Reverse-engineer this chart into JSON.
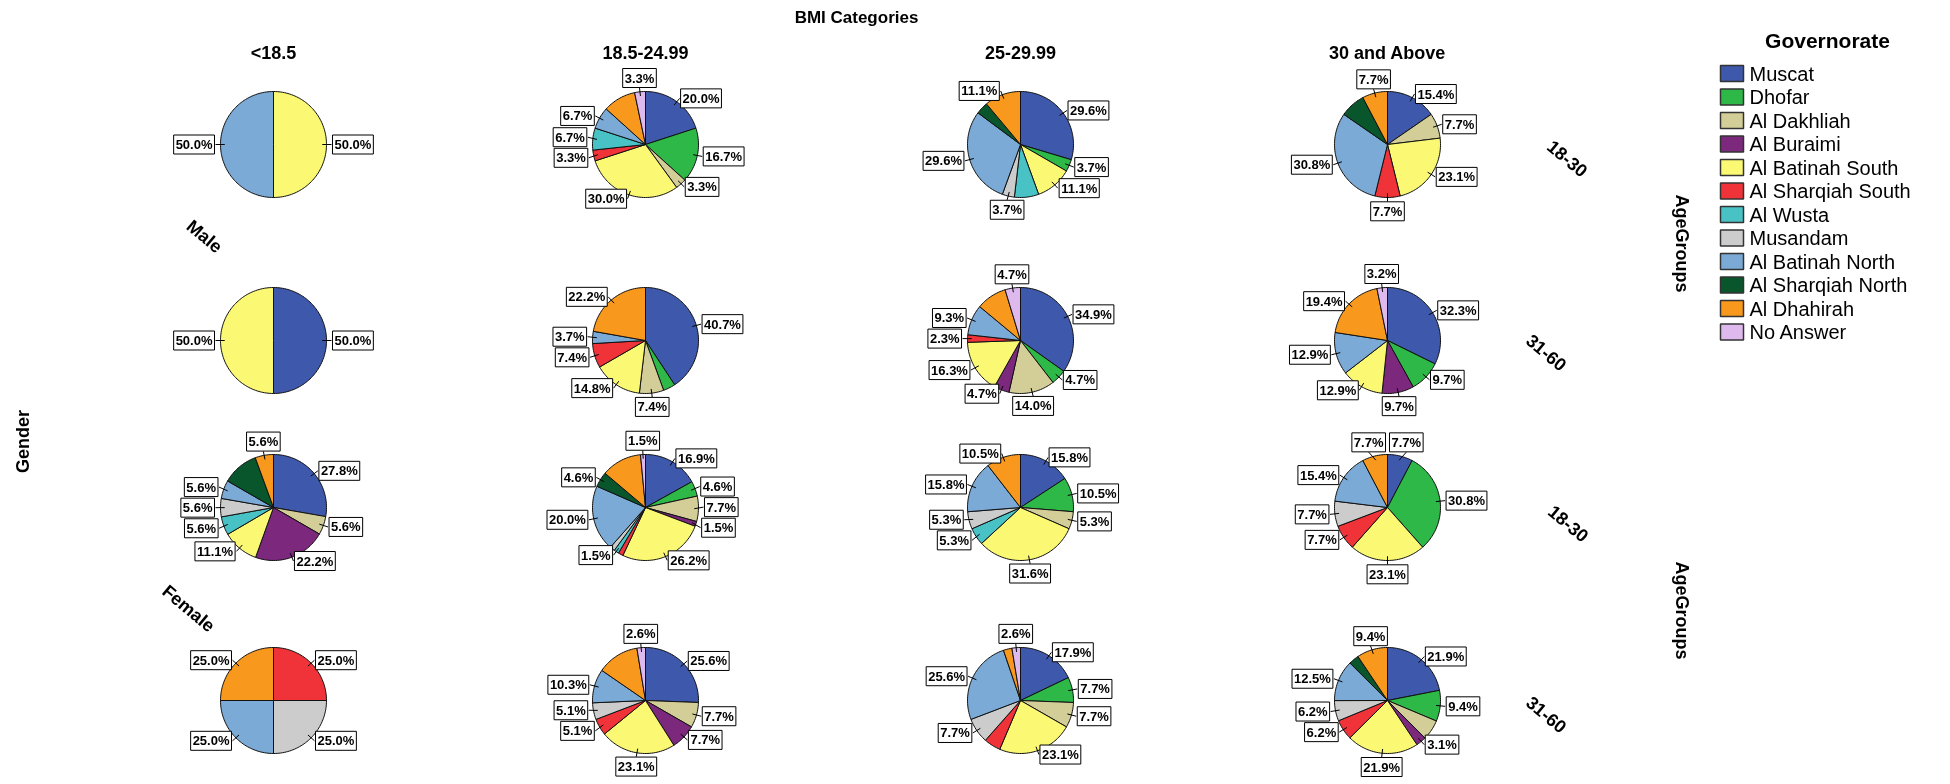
{
  "chart_data": [
    {
      "type": "other",
      "title": "BMI Categories",
      "annotations": [
        "Gender",
        "Male",
        "Female",
        "AgeGroups",
        "AgeGroups",
        "18-30",
        "31-60",
        "18-30",
        "31-60"
      ]
    },
    {
      "type": "pie",
      "title": "<18.5",
      "categories": [
        null,
        null,
        null,
        null,
        null,
        null,
        null,
        null,
        null,
        null,
        null,
        null
      ],
      "colors": [
        "#3e58ac",
        "#2eb848",
        "#d3ce97",
        "#7c287d",
        "#fbf873",
        "#ef3338",
        "#48c2c5",
        "#cccccc",
        "#7aaad5",
        "#0a562c",
        "#f8981d",
        "#ddb9ee"
      ],
      "values": [
        null,
        null,
        null,
        null,
        50.0,
        null,
        null,
        null,
        50.0,
        null,
        null,
        null
      ],
      "value_labels": [
        null,
        null,
        null,
        null,
        "50.0%",
        null,
        null,
        null,
        "50.0%",
        null,
        null,
        null
      ]
    },
    {
      "type": "pie",
      "title": "18.5-24.99",
      "categories": [
        null,
        null,
        null,
        null,
        null,
        null,
        null,
        null,
        null,
        null,
        null,
        null
      ],
      "colors": [
        "#3e58ac",
        "#2eb848",
        "#d3ce97",
        "#7c287d",
        "#fbf873",
        "#ef3338",
        "#48c2c5",
        "#cccccc",
        "#7aaad5",
        "#0a562c",
        "#f8981d",
        "#ddb9ee"
      ],
      "values": [
        20.0,
        16.7,
        3.3,
        null,
        30.0,
        3.3,
        6.7,
        null,
        6.7,
        null,
        10.0,
        3.3
      ],
      "value_labels": [
        "20.0%",
        "16.7%",
        "3.3%",
        null,
        "30.0%",
        "3.3%",
        "6.7%",
        null,
        "6.7%",
        null,
        null,
        "3.3%"
      ]
    },
    {
      "type": "pie",
      "title": "25-29.99",
      "categories": [
        null,
        null,
        null,
        null,
        null,
        null,
        null,
        null,
        null,
        null,
        null,
        null
      ],
      "colors": [
        "#3e58ac",
        "#2eb848",
        "#d3ce97",
        "#7c287d",
        "#fbf873",
        "#ef3338",
        "#48c2c5",
        "#cccccc",
        "#7aaad5",
        "#0a562c",
        "#f8981d",
        "#ddb9ee"
      ],
      "values": [
        29.6,
        3.7,
        null,
        null,
        11.1,
        null,
        7.4,
        3.7,
        29.6,
        3.7,
        11.1,
        null
      ],
      "value_labels": [
        "29.6%",
        "3.7%",
        null,
        null,
        "11.1%",
        null,
        null,
        "3.7%",
        "29.6%",
        null,
        "11.1%",
        null
      ]
    },
    {
      "type": "pie",
      "title": "30 and Above",
      "legend": "right",
      "legend_title": "Governorate",
      "categories": [
        "Muscat",
        "Dhofar",
        "Al Dakhliah",
        "Al Buraimi",
        "Al Batinah South",
        "Al Sharqiah South",
        "Al Wusta",
        "Musandam",
        "Al Batinah North",
        "Al Sharqiah North",
        "Al Dhahirah",
        "No Answer"
      ],
      "colors": [
        "#3e58ac",
        "#2eb848",
        "#d3ce97",
        "#7c287d",
        "#fbf873",
        "#ef3338",
        "#48c2c5",
        "#cccccc",
        "#7aaad5",
        "#0a562c",
        "#f8981d",
        "#ddb9ee"
      ],
      "values": [
        15.4,
        null,
        7.7,
        null,
        23.1,
        7.7,
        null,
        null,
        30.8,
        7.7,
        7.7,
        null
      ],
      "value_labels": [
        "15.4%",
        null,
        "7.7%",
        null,
        "23.1%",
        "7.7%",
        null,
        null,
        "30.8%",
        null,
        "7.7%",
        null
      ]
    },
    {
      "type": "pie",
      "categories": [
        null,
        null,
        null,
        null,
        null,
        null,
        null,
        null,
        null,
        null,
        null,
        null
      ],
      "colors": [
        "#3e58ac",
        "#2eb848",
        "#d3ce97",
        "#7c287d",
        "#fbf873",
        "#ef3338",
        "#48c2c5",
        "#cccccc",
        "#7aaad5",
        "#0a562c",
        "#f8981d",
        "#ddb9ee"
      ],
      "values": [
        50.0,
        null,
        null,
        null,
        50.0,
        null,
        null,
        null,
        null,
        null,
        null,
        null
      ],
      "value_labels": [
        "50.0%",
        null,
        null,
        null,
        "50.0%",
        null,
        null,
        null,
        null,
        null,
        null,
        null
      ]
    },
    {
      "type": "pie",
      "categories": [
        null,
        null,
        null,
        null,
        null,
        null,
        null,
        null,
        null,
        null,
        null,
        null
      ],
      "colors": [
        "#3e58ac",
        "#2eb848",
        "#d3ce97",
        "#7c287d",
        "#fbf873",
        "#ef3338",
        "#48c2c5",
        "#cccccc",
        "#7aaad5",
        "#0a562c",
        "#f8981d",
        "#ddb9ee"
      ],
      "values": [
        40.7,
        3.7,
        7.4,
        null,
        14.8,
        7.4,
        null,
        null,
        3.7,
        null,
        22.2,
        null
      ],
      "value_labels": [
        "40.7%",
        null,
        "7.4%",
        null,
        "14.8%",
        "7.4%",
        null,
        null,
        "3.7%",
        null,
        "22.2%",
        null
      ]
    },
    {
      "type": "pie",
      "categories": [
        null,
        null,
        null,
        null,
        null,
        null,
        null,
        null,
        null,
        null,
        null,
        null
      ],
      "colors": [
        "#3e58ac",
        "#2eb848",
        "#d3ce97",
        "#7c287d",
        "#fbf873",
        "#ef3338",
        "#48c2c5",
        "#cccccc",
        "#7aaad5",
        "#0a562c",
        "#f8981d",
        "#ddb9ee"
      ],
      "values": [
        34.9,
        4.7,
        14.0,
        4.7,
        16.3,
        2.3,
        null,
        null,
        9.3,
        null,
        9.3,
        4.7
      ],
      "value_labels": [
        "34.9%",
        "4.7%",
        "14.0%",
        "4.7%",
        "16.3%",
        "2.3%",
        null,
        null,
        "9.3%",
        null,
        null,
        "4.7%"
      ]
    },
    {
      "type": "pie",
      "categories": [
        null,
        null,
        null,
        null,
        null,
        null,
        null,
        null,
        null,
        null,
        null,
        null
      ],
      "colors": [
        "#3e58ac",
        "#2eb848",
        "#d3ce97",
        "#7c287d",
        "#fbf873",
        "#ef3338",
        "#48c2c5",
        "#cccccc",
        "#7aaad5",
        "#0a562c",
        "#f8981d",
        "#ddb9ee"
      ],
      "values": [
        32.3,
        9.7,
        null,
        9.7,
        12.9,
        null,
        null,
        null,
        12.9,
        null,
        19.4,
        3.2
      ],
      "value_labels": [
        "32.3%",
        "9.7%",
        null,
        "9.7%",
        "12.9%",
        null,
        null,
        null,
        "12.9%",
        null,
        "19.4%",
        "3.2%"
      ]
    },
    {
      "type": "pie",
      "categories": [
        null,
        null,
        null,
        null,
        null,
        null,
        null,
        null,
        null,
        null,
        null,
        null
      ],
      "colors": [
        "#3e58ac",
        "#2eb848",
        "#d3ce97",
        "#7c287d",
        "#fbf873",
        "#ef3338",
        "#48c2c5",
        "#cccccc",
        "#7aaad5",
        "#0a562c",
        "#f8981d",
        "#ddb9ee"
      ],
      "values": [
        27.8,
        null,
        5.6,
        22.2,
        11.1,
        null,
        5.6,
        5.6,
        5.6,
        11.1,
        5.6,
        null
      ],
      "value_labels": [
        "27.8%",
        null,
        "5.6%",
        "22.2%",
        "11.1%",
        null,
        "5.6%",
        "5.6%",
        "5.6%",
        null,
        "5.6%",
        null
      ]
    },
    {
      "type": "pie",
      "categories": [
        null,
        null,
        null,
        null,
        null,
        null,
        null,
        null,
        null,
        null,
        null,
        null
      ],
      "colors": [
        "#3e58ac",
        "#2eb848",
        "#d3ce97",
        "#7c287d",
        "#fbf873",
        "#ef3338",
        "#48c2c5",
        "#cccccc",
        "#7aaad5",
        "#0a562c",
        "#f8981d",
        "#ddb9ee"
      ],
      "values": [
        16.9,
        4.6,
        7.7,
        1.5,
        26.2,
        1.5,
        1.5,
        1.5,
        20.0,
        4.6,
        12.3,
        1.5
      ],
      "value_labels": [
        "16.9%",
        "4.6%",
        "7.7%",
        "1.5%",
        "26.2%",
        null,
        "1.5%",
        null,
        "20.0%",
        "4.6%",
        null,
        "1.5%"
      ]
    },
    {
      "type": "pie",
      "categories": [
        null,
        null,
        null,
        null,
        null,
        null,
        null,
        null,
        null,
        null,
        null,
        null
      ],
      "colors": [
        "#3e58ac",
        "#2eb848",
        "#d3ce97",
        "#7c287d",
        "#fbf873",
        "#ef3338",
        "#48c2c5",
        "#cccccc",
        "#7aaad5",
        "#0a562c",
        "#f8981d",
        "#ddb9ee"
      ],
      "values": [
        15.8,
        10.5,
        5.3,
        null,
        31.6,
        null,
        5.3,
        5.3,
        15.8,
        null,
        10.5,
        null
      ],
      "value_labels": [
        "15.8%",
        "10.5%",
        "5.3%",
        null,
        "31.6%",
        null,
        "5.3%",
        "5.3%",
        "15.8%",
        null,
        "10.5%",
        null
      ]
    },
    {
      "type": "pie",
      "categories": [
        null,
        null,
        null,
        null,
        null,
        null,
        null,
        null,
        null,
        null,
        null,
        null
      ],
      "colors": [
        "#3e58ac",
        "#2eb848",
        "#d3ce97",
        "#7c287d",
        "#fbf873",
        "#ef3338",
        "#48c2c5",
        "#cccccc",
        "#7aaad5",
        "#0a562c",
        "#f8981d",
        "#ddb9ee"
      ],
      "values": [
        7.7,
        30.8,
        null,
        null,
        23.1,
        7.7,
        null,
        7.7,
        15.4,
        null,
        7.7,
        null
      ],
      "value_labels": [
        "7.7%",
        "30.8%",
        null,
        null,
        "23.1%",
        "7.7%",
        null,
        "7.7%",
        "15.4%",
        null,
        "7.7%",
        null
      ]
    },
    {
      "type": "pie",
      "categories": [
        null,
        null,
        null,
        null,
        null,
        null,
        null,
        null,
        null,
        null,
        null,
        null
      ],
      "colors": [
        "#3e58ac",
        "#2eb848",
        "#d3ce97",
        "#7c287d",
        "#fbf873",
        "#ef3338",
        "#48c2c5",
        "#cccccc",
        "#7aaad5",
        "#0a562c",
        "#f8981d",
        "#ddb9ee"
      ],
      "values": [
        null,
        null,
        null,
        null,
        null,
        25.0,
        null,
        25.0,
        25.0,
        null,
        25.0,
        null
      ],
      "value_labels": [
        null,
        null,
        null,
        null,
        null,
        "25.0%",
        null,
        "25.0%",
        "25.0%",
        null,
        "25.0%",
        null
      ]
    },
    {
      "type": "pie",
      "categories": [
        null,
        null,
        null,
        null,
        null,
        null,
        null,
        null,
        null,
        null,
        null,
        null
      ],
      "colors": [
        "#3e58ac",
        "#2eb848",
        "#d3ce97",
        "#7c287d",
        "#fbf873",
        "#ef3338",
        "#48c2c5",
        "#cccccc",
        "#7aaad5",
        "#0a562c",
        "#f8981d",
        "#ddb9ee"
      ],
      "values": [
        25.6,
        null,
        7.7,
        7.7,
        23.1,
        5.1,
        null,
        5.1,
        10.3,
        null,
        12.8,
        2.6
      ],
      "value_labels": [
        "25.6%",
        null,
        "7.7%",
        "7.7%",
        "23.1%",
        "5.1%",
        null,
        "5.1%",
        "10.3%",
        null,
        null,
        "2.6%"
      ]
    },
    {
      "type": "pie",
      "categories": [
        null,
        null,
        null,
        null,
        null,
        null,
        null,
        null,
        null,
        null,
        null,
        null
      ],
      "colors": [
        "#3e58ac",
        "#2eb848",
        "#d3ce97",
        "#7c287d",
        "#fbf873",
        "#ef3338",
        "#48c2c5",
        "#cccccc",
        "#7aaad5",
        "#0a562c",
        "#f8981d",
        "#ddb9ee"
      ],
      "values": [
        17.9,
        7.7,
        7.7,
        null,
        23.1,
        5.1,
        null,
        7.7,
        25.6,
        null,
        2.6,
        2.6
      ],
      "value_labels": [
        "17.9%",
        "7.7%",
        "7.7%",
        null,
        "23.1%",
        null,
        null,
        "7.7%",
        "25.6%",
        null,
        null,
        "2.6%"
      ]
    },
    {
      "type": "pie",
      "categories": [
        null,
        null,
        null,
        null,
        null,
        null,
        null,
        null,
        null,
        null,
        null,
        null
      ],
      "colors": [
        "#3e58ac",
        "#2eb848",
        "#d3ce97",
        "#7c287d",
        "#fbf873",
        "#ef3338",
        "#48c2c5",
        "#cccccc",
        "#7aaad5",
        "#0a562c",
        "#f8981d",
        "#ddb9ee"
      ],
      "values": [
        21.9,
        9.4,
        6.2,
        3.1,
        21.9,
        6.2,
        null,
        6.2,
        12.5,
        3.1,
        9.4,
        null
      ],
      "value_labels": [
        "21.9%",
        "9.4%",
        null,
        "3.1%",
        "21.9%",
        "6.2%",
        null,
        "6.2%",
        "12.5%",
        null,
        "9.4%",
        null
      ]
    }
  ]
}
